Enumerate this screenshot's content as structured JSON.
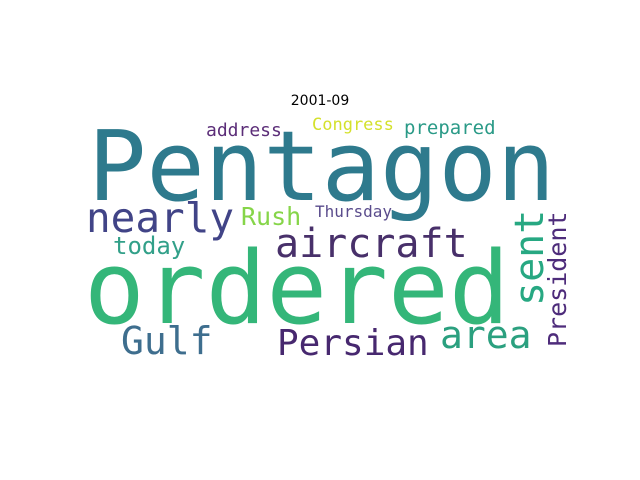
{
  "title": "2001-09",
  "words": [
    {
      "text": "Pentagon",
      "color": "#2e7a8d"
    },
    {
      "text": "ordered",
      "color": "#34b679"
    },
    {
      "text": "nearly",
      "color": "#414487"
    },
    {
      "text": "aircraft",
      "color": "#48306a"
    },
    {
      "text": "sent",
      "color": "#27a882"
    },
    {
      "text": "Gulf",
      "color": "#3e6e8e"
    },
    {
      "text": "Persian",
      "color": "#47286f"
    },
    {
      "text": "area",
      "color": "#2ba07f"
    },
    {
      "text": "President",
      "color": "#4e2c7b"
    },
    {
      "text": "Rush",
      "color": "#86d549"
    },
    {
      "text": "today",
      "color": "#32a089"
    },
    {
      "text": "Thursday",
      "color": "#5a4c8c"
    },
    {
      "text": "address",
      "color": "#5b2d78"
    },
    {
      "text": "Congress",
      "color": "#d4e12c"
    },
    {
      "text": "prepared",
      "color": "#2a9a87"
    }
  ]
}
